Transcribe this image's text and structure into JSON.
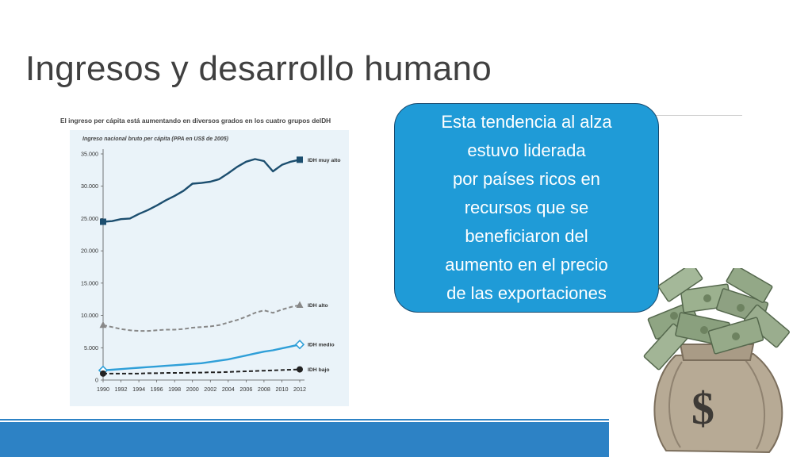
{
  "slide": {
    "title": "Ingresos y desarrollo humano"
  },
  "callout": {
    "lines": [
      "Esta tendencia al alza",
      "estuvo liderada",
      "por países ricos en",
      "recursos que se",
      "beneficiaron del",
      "aumento en el precio",
      "de las exportaciones"
    ],
    "fill_color": "#1f9bd7"
  },
  "image": {
    "icon": "money-bag-icon",
    "symbol": "$"
  },
  "chart_data": {
    "type": "line",
    "title": "El ingreso per cápita está aumentando en diversos grados en los cuatro grupos delDH",
    "ylabel": "Ingreso nacional bruto per cápita (PPA en US$ de 2005)",
    "xlabel": "",
    "x": [
      1990,
      1991,
      1992,
      1993,
      1994,
      1995,
      1996,
      1997,
      1998,
      1999,
      2000,
      2001,
      2002,
      2003,
      2004,
      2005,
      2006,
      2007,
      2008,
      2009,
      2010,
      2011,
      2012
    ],
    "x_ticks": [
      "1990",
      "1992",
      "1994",
      "1996",
      "1998",
      "2000",
      "2002",
      "2004",
      "2006",
      "2008",
      "2010",
      "2012"
    ],
    "y_ticks": [
      "0",
      "5.000",
      "10.000",
      "15.000",
      "20.000",
      "25.000",
      "30.000",
      "35.000"
    ],
    "ylim": [
      0,
      35000
    ],
    "grid": false,
    "background": "#eaf3f9",
    "series": [
      {
        "name": "IDH muy alto",
        "color": "#1c4e6f",
        "style": "solid",
        "marker": "square",
        "values": [
          24500,
          24600,
          24900,
          25000,
          25700,
          26300,
          27000,
          27800,
          28500,
          29300,
          30400,
          30500,
          30700,
          31100,
          32000,
          33000,
          33800,
          34200,
          33900,
          32300,
          33300,
          33800,
          34100
        ]
      },
      {
        "name": "IDH alto",
        "color": "#888888",
        "style": "dashed",
        "marker": "triangle",
        "values": [
          8500,
          8200,
          7900,
          7700,
          7600,
          7600,
          7700,
          7800,
          7800,
          7900,
          8100,
          8200,
          8300,
          8500,
          8900,
          9300,
          9800,
          10400,
          10800,
          10400,
          10900,
          11300,
          11600
        ]
      },
      {
        "name": "IDH medio",
        "color": "#2f9fd8",
        "style": "solid",
        "marker": "diamond",
        "values": [
          1500,
          1600,
          1700,
          1800,
          1900,
          2000,
          2100,
          2200,
          2300,
          2400,
          2500,
          2600,
          2800,
          3000,
          3200,
          3500,
          3800,
          4100,
          4400,
          4600,
          4900,
          5200,
          5500
        ]
      },
      {
        "name": "IDH bajo",
        "color": "#222222",
        "style": "dashed",
        "marker": "circle",
        "values": [
          1000,
          1000,
          1000,
          1000,
          1000,
          1050,
          1050,
          1100,
          1100,
          1100,
          1150,
          1150,
          1200,
          1200,
          1250,
          1300,
          1350,
          1400,
          1450,
          1500,
          1550,
          1600,
          1650
        ]
      }
    ]
  }
}
